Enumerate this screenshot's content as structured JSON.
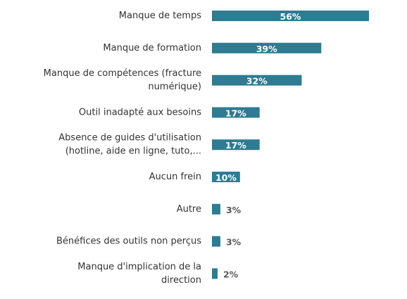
{
  "chart_data": {
    "type": "bar",
    "orientation": "horizontal",
    "categories": [
      [
        "Manque de temps"
      ],
      [
        "Manque de formation"
      ],
      [
        "Manque de compétences (fracture",
        "numérique)"
      ],
      [
        "Outil inadapté aux besoins"
      ],
      [
        "Absence de guides d'utilisation",
        "(hotline, aide en ligne, tuto,..."
      ],
      [
        "Aucun frein"
      ],
      [
        "Autre"
      ],
      [
        "Bénéfices des outils non perçus"
      ],
      [
        "Manque d'implication de la",
        "direction"
      ]
    ],
    "values": [
      56,
      39,
      32,
      17,
      17,
      10,
      3,
      3,
      2
    ],
    "value_labels": [
      "56%",
      "39%",
      "32%",
      "17%",
      "17%",
      "10%",
      "3%",
      "3%",
      "2%"
    ],
    "unit": "%",
    "xlim": [
      0,
      56
    ],
    "grid": false,
    "legend": "none",
    "colors": {
      "bar": "#2e7b92",
      "label_inside": "#ffffff",
      "label_outside": "#595959",
      "category_text": "#333333"
    }
  }
}
